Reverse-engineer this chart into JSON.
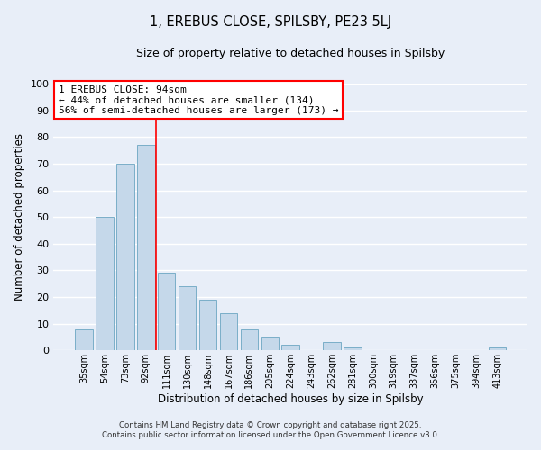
{
  "title": "1, EREBUS CLOSE, SPILSBY, PE23 5LJ",
  "subtitle": "Size of property relative to detached houses in Spilsby",
  "xlabel": "Distribution of detached houses by size in Spilsby",
  "ylabel": "Number of detached properties",
  "bar_color": "#c5d8ea",
  "bar_edge_color": "#7aaec8",
  "background_color": "#e8eef8",
  "grid_color": "#ffffff",
  "categories": [
    "35sqm",
    "54sqm",
    "73sqm",
    "92sqm",
    "111sqm",
    "130sqm",
    "148sqm",
    "167sqm",
    "186sqm",
    "205sqm",
    "224sqm",
    "243sqm",
    "262sqm",
    "281sqm",
    "300sqm",
    "319sqm",
    "337sqm",
    "356sqm",
    "375sqm",
    "394sqm",
    "413sqm"
  ],
  "values": [
    8,
    50,
    70,
    77,
    29,
    24,
    19,
    14,
    8,
    5,
    2,
    0,
    3,
    1,
    0,
    0,
    0,
    0,
    0,
    0,
    1
  ],
  "ylim": [
    0,
    100
  ],
  "yticks": [
    0,
    10,
    20,
    30,
    40,
    50,
    60,
    70,
    80,
    90,
    100
  ],
  "annotation_line1": "1 EREBUS CLOSE: 94sqm",
  "annotation_line2": "← 44% of detached houses are smaller (134)",
  "annotation_line3": "56% of semi-detached houses are larger (173) →",
  "property_size_index": 4,
  "footer_line1": "Contains HM Land Registry data © Crown copyright and database right 2025.",
  "footer_line2": "Contains public sector information licensed under the Open Government Licence v3.0.",
  "figsize": [
    6.0,
    5.0
  ],
  "dpi": 100
}
